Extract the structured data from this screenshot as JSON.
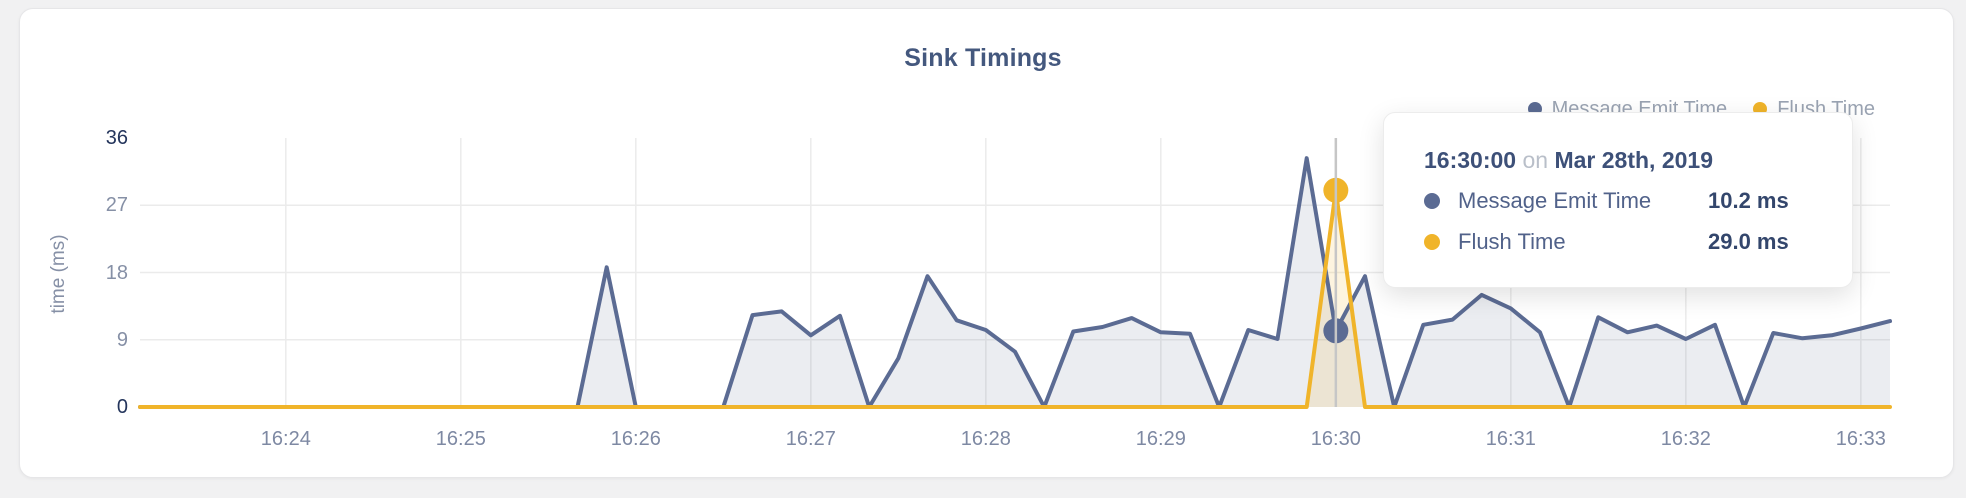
{
  "legend": [
    {
      "label": "Message Emit Time",
      "color": "#5b6b93"
    },
    {
      "label": "Flush Time",
      "color": "#f0b42a"
    }
  ],
  "tooltip": {
    "time": "16:30:00",
    "conjunction": "on",
    "date": "Mar 28th, 2019",
    "rows": [
      {
        "label": "Message Emit Time",
        "value": "10.2 ms",
        "color": "#5b6b93"
      },
      {
        "label": "Flush Time",
        "value": "29.0 ms",
        "color": "#f0b42a"
      }
    ]
  },
  "chart_data": {
    "type": "area",
    "title": "Sink Timings",
    "ylabel": "time (ms)",
    "xlabel": "",
    "ylim": [
      0,
      36
    ],
    "y_ticks": [
      0,
      9,
      18,
      27,
      36
    ],
    "x_tick_labels": [
      "16:24",
      "16:25",
      "16:26",
      "16:27",
      "16:28",
      "16:29",
      "16:30",
      "16:31",
      "16:32",
      "16:33"
    ],
    "x_range": [
      "16:23:10",
      "16:33:10"
    ],
    "x_start": "16:23:10",
    "x_step_seconds": 10,
    "grid": true,
    "legend_position": "top-right",
    "colors": {
      "grid": "#ebebeb",
      "hover_line": "#c6c6c6",
      "y_tick_strong": "#24355c",
      "y_tick_normal": "#8690a6",
      "x_tick": "#7e89a3"
    },
    "series": [
      {
        "name": "Message Emit Time",
        "color": "#5b6b93",
        "fill": "rgba(99,113,148,0.13)",
        "values": [
          0,
          0,
          0,
          0,
          0,
          0,
          0,
          0,
          0,
          0,
          0,
          0,
          0,
          0,
          0,
          0,
          18.7,
          0,
          0,
          0,
          0,
          12.3,
          12.8,
          9.6,
          12.2,
          0,
          6.5,
          17.5,
          11.6,
          10.3,
          7.4,
          0,
          10.1,
          10.7,
          11.9,
          10,
          9.8,
          0,
          10.3,
          9.1,
          33.3,
          10.2,
          17.5,
          0,
          11,
          11.7,
          15,
          13.2,
          10,
          0,
          12,
          10,
          10.9,
          9.1,
          11,
          0,
          9.9,
          9.2,
          9.6,
          10.5,
          11.5
        ]
      },
      {
        "name": "Flush Time",
        "color": "#f0b42a",
        "fill": "rgba(240,180,42,0.15)",
        "values": [
          0,
          0,
          0,
          0,
          0,
          0,
          0,
          0,
          0,
          0,
          0,
          0,
          0,
          0,
          0,
          0,
          0,
          0,
          0,
          0,
          0,
          0,
          0,
          0,
          0,
          0,
          0,
          0,
          0,
          0,
          0,
          0,
          0,
          0,
          0,
          0,
          0,
          0,
          0,
          0,
          0,
          29,
          0,
          0,
          0,
          0,
          0,
          0,
          0,
          0,
          0,
          0,
          0,
          0,
          0,
          0,
          0,
          0,
          0,
          0,
          0
        ]
      }
    ],
    "hover": {
      "x": "16:30:00",
      "points": [
        {
          "series": "Message Emit Time",
          "value": 10.2
        },
        {
          "series": "Flush Time",
          "value": 29.0
        }
      ]
    }
  }
}
